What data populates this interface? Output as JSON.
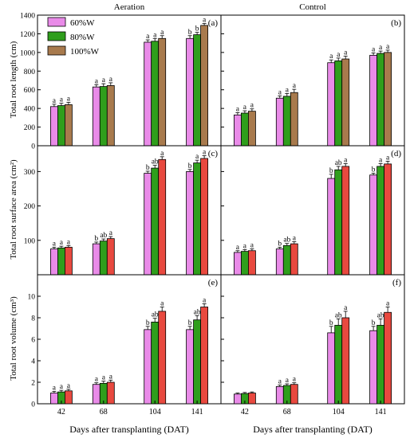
{
  "figure": {
    "col_titles": [
      "Aeration",
      "Control"
    ],
    "xlabel": "Days after transplanting (DAT)",
    "row_ylabels": [
      "Total root length (cm)",
      "Total root surface area (cm²)",
      "Total root volume (cm³)"
    ],
    "legend": [
      "60%W",
      "80%W",
      "100%W"
    ],
    "colors": [
      "#e98be8",
      "#2f9e1c",
      "#a87a4d"
    ],
    "colors_alt": [
      "#e98be8",
      "#2f9e1c",
      "#e8493f"
    ]
  },
  "chart_data": [
    {
      "panel_label": "(a)",
      "type": "bar",
      "group": "Aeration",
      "ylabel": "Total root length (cm)",
      "categories": [
        "42",
        "68",
        "104",
        "141"
      ],
      "ylim": [
        0,
        1400
      ],
      "yticks": [
        "0",
        "200",
        "400",
        "600",
        "800",
        "1000",
        "1200",
        "1400"
      ],
      "palette": "brown",
      "series": [
        {
          "name": "60%W",
          "values": [
            420,
            630,
            1110,
            1150
          ],
          "errors": [
            25,
            25,
            25,
            30
          ]
        },
        {
          "name": "80%W",
          "values": [
            430,
            635,
            1120,
            1190
          ],
          "errors": [
            25,
            30,
            30,
            25
          ]
        },
        {
          "name": "100%W",
          "values": [
            440,
            645,
            1150,
            1290
          ],
          "errors": [
            25,
            30,
            30,
            20
          ]
        }
      ],
      "letters": [
        [
          "a",
          "a",
          "a"
        ],
        [
          "a",
          "a",
          "a"
        ],
        [
          "a",
          "a",
          "a"
        ],
        [
          "b",
          "b",
          "a"
        ]
      ]
    },
    {
      "panel_label": "(b)",
      "type": "bar",
      "group": "Control",
      "ylabel": "",
      "categories": [
        "42",
        "68",
        "104",
        "141"
      ],
      "ylim": [
        0,
        1400
      ],
      "yticks": [],
      "palette": "brown",
      "series": [
        {
          "name": "60%W",
          "values": [
            330,
            510,
            890,
            970
          ],
          "errors": [
            25,
            25,
            30,
            25
          ]
        },
        {
          "name": "80%W",
          "values": [
            350,
            530,
            910,
            990
          ],
          "errors": [
            25,
            30,
            30,
            25
          ]
        },
        {
          "name": "100%W",
          "values": [
            370,
            570,
            930,
            1000
          ],
          "errors": [
            25,
            35,
            30,
            25
          ]
        }
      ],
      "letters": [
        [
          "a",
          "a",
          "a"
        ],
        [
          "a",
          "a",
          "a"
        ],
        [
          "a",
          "a",
          "a"
        ],
        [
          "a",
          "a",
          "a"
        ]
      ]
    },
    {
      "panel_label": "(c)",
      "type": "bar",
      "group": "Aeration",
      "ylabel": "Total root surface area (cm²)",
      "categories": [
        "42",
        "68",
        "104",
        "141"
      ],
      "ylim": [
        0,
        375
      ],
      "yticks": [
        "100",
        "200",
        "300"
      ],
      "palette": "red",
      "series": [
        {
          "name": "60%W",
          "values": [
            75,
            90,
            295,
            300
          ],
          "errors": [
            5,
            5,
            6,
            6
          ]
        },
        {
          "name": "80%W",
          "values": [
            78,
            98,
            310,
            325
          ],
          "errors": [
            5,
            6,
            8,
            8
          ]
        },
        {
          "name": "100%W",
          "values": [
            80,
            105,
            335,
            338
          ],
          "errors": [
            5,
            6,
            8,
            8
          ]
        }
      ],
      "letters": [
        [
          "a",
          "a",
          "a"
        ],
        [
          "b",
          "ab",
          "a"
        ],
        [
          "b",
          "ab",
          "a"
        ],
        [
          "b",
          "a",
          "a"
        ]
      ]
    },
    {
      "panel_label": "(d)",
      "type": "bar",
      "group": "Control",
      "ylabel": "",
      "categories": [
        "42",
        "68",
        "104",
        "141"
      ],
      "ylim": [
        0,
        375
      ],
      "yticks": [],
      "palette": "red",
      "series": [
        {
          "name": "60%W",
          "values": [
            65,
            75,
            280,
            290
          ],
          "errors": [
            5,
            5,
            12,
            5
          ]
        },
        {
          "name": "80%W",
          "values": [
            68,
            85,
            305,
            315
          ],
          "errors": [
            5,
            6,
            10,
            8
          ]
        },
        {
          "name": "100%W",
          "values": [
            70,
            90,
            315,
            322
          ],
          "errors": [
            5,
            6,
            8,
            8
          ]
        }
      ],
      "letters": [
        [
          "a",
          "a",
          "a"
        ],
        [
          "b",
          "ab",
          "a"
        ],
        [
          "b",
          "ab",
          "a"
        ],
        [
          "b",
          "a",
          "a"
        ]
      ]
    },
    {
      "panel_label": "(e)",
      "type": "bar",
      "group": "Aeration",
      "ylabel": "Total root volume (cm³)",
      "categories": [
        "42",
        "68",
        "104",
        "141"
      ],
      "ylim": [
        0,
        12
      ],
      "yticks": [
        "0",
        "2",
        "4",
        "6",
        "8",
        "10"
      ],
      "palette": "red",
      "series": [
        {
          "name": "60%W",
          "values": [
            1.0,
            1.8,
            6.9,
            6.9
          ],
          "errors": [
            0.15,
            0.15,
            0.3,
            0.3
          ]
        },
        {
          "name": "80%W",
          "values": [
            1.1,
            1.9,
            7.6,
            7.8
          ],
          "errors": [
            0.15,
            0.2,
            0.35,
            0.4
          ]
        },
        {
          "name": "100%W",
          "values": [
            1.2,
            2.0,
            8.6,
            9.0
          ],
          "errors": [
            0.15,
            0.2,
            0.4,
            0.3
          ]
        }
      ],
      "letters": [
        [
          "a",
          "a",
          "a"
        ],
        [
          "a",
          "a",
          "a"
        ],
        [
          "b",
          "ab",
          "a"
        ],
        [
          "b",
          "ab",
          "a"
        ]
      ]
    },
    {
      "panel_label": "(f)",
      "type": "bar",
      "group": "Control",
      "ylabel": "",
      "categories": [
        "42",
        "68",
        "104",
        "141"
      ],
      "ylim": [
        0,
        12
      ],
      "yticks": [],
      "palette": "red",
      "series": [
        {
          "name": "60%W",
          "values": [
            0.9,
            1.6,
            6.6,
            6.8
          ],
          "errors": [
            0.1,
            0.15,
            0.6,
            0.4
          ]
        },
        {
          "name": "80%W",
          "values": [
            0.95,
            1.7,
            7.3,
            7.3
          ],
          "errors": [
            0.1,
            0.15,
            0.6,
            0.6
          ]
        },
        {
          "name": "100%W",
          "values": [
            1.0,
            1.8,
            8.0,
            8.5
          ],
          "errors": [
            0.1,
            0.15,
            0.6,
            0.5
          ]
        }
      ],
      "letters": [
        [
          "",
          "",
          ""
        ],
        [
          "a",
          "a",
          "a"
        ],
        [
          "b",
          "ab",
          "a"
        ],
        [
          "b",
          "ab",
          "a"
        ]
      ]
    }
  ]
}
